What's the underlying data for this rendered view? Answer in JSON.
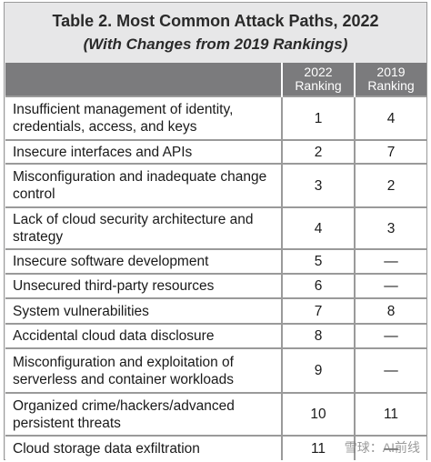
{
  "header": {
    "title": "Table 2. Most Common Attack Paths, 2022",
    "subtitle": "(With Changes from 2019 Rankings)"
  },
  "table": {
    "columns": [
      {
        "year": "2022",
        "label": "Ranking"
      },
      {
        "year": "2019",
        "label": "Ranking"
      }
    ],
    "rows": [
      [
        "Insufficient management of identity, credentials, access, and keys",
        1,
        4
      ],
      [
        "Insecure interfaces and APIs",
        2,
        7
      ],
      [
        "Misconfiguration and inadequate change control",
        3,
        2
      ],
      [
        "Lack of cloud security architecture and strategy",
        4,
        3
      ],
      [
        "Insecure software development",
        5,
        "—"
      ],
      [
        "Unsecured third-party resources",
        6,
        "—"
      ],
      [
        "System vulnerabilities",
        7,
        8
      ],
      [
        "Accidental cloud data disclosure",
        8,
        "—"
      ],
      [
        "Misconfiguration and exploitation of serverless and container workloads",
        9,
        "—"
      ],
      [
        "Organized crime/hackers/advanced persistent threats",
        10,
        11
      ],
      [
        "Cloud storage data exfiltration",
        11,
        "—"
      ]
    ]
  },
  "watermark": "雪球：AI前线"
}
